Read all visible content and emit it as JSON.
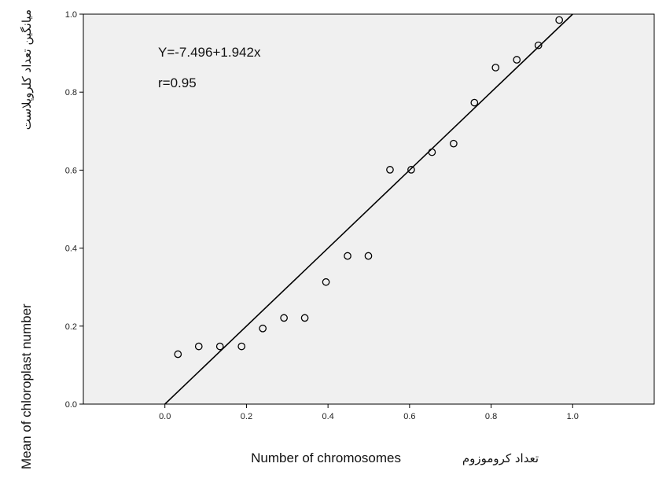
{
  "chart_data": {
    "type": "scatter",
    "annotations": [
      "Y=-7.496+1.942x",
      "r=0.95"
    ],
    "xlabel": "Number of chromosomes",
    "xlabel_alt": "تعداد کروموزوم",
    "ylabel": "Mean of chloroplast number",
    "ylabel_alt": "میانگین تعداد کلروپلاست",
    "xlim": [
      -0.2,
      1.2
    ],
    "ylim": [
      0.0,
      1.0
    ],
    "x_ticks": [
      "0.0",
      "0.2",
      "0.4",
      "0.6",
      "0.8",
      "1.0"
    ],
    "y_ticks": [
      "0.0",
      "0.2",
      "0.4",
      "0.6",
      "0.8",
      "1.0"
    ],
    "grid": false,
    "points": [
      {
        "x": 0.032,
        "y": 0.128
      },
      {
        "x": 0.083,
        "y": 0.148
      },
      {
        "x": 0.135,
        "y": 0.148
      },
      {
        "x": 0.188,
        "y": 0.148
      },
      {
        "x": 0.24,
        "y": 0.194
      },
      {
        "x": 0.292,
        "y": 0.221
      },
      {
        "x": 0.343,
        "y": 0.221
      },
      {
        "x": 0.395,
        "y": 0.313
      },
      {
        "x": 0.448,
        "y": 0.38
      },
      {
        "x": 0.499,
        "y": 0.38
      },
      {
        "x": 0.552,
        "y": 0.601
      },
      {
        "x": 0.604,
        "y": 0.601
      },
      {
        "x": 0.655,
        "y": 0.646
      },
      {
        "x": 0.708,
        "y": 0.668
      },
      {
        "x": 0.759,
        "y": 0.773
      },
      {
        "x": 0.811,
        "y": 0.863
      },
      {
        "x": 0.863,
        "y": 0.883
      },
      {
        "x": 0.916,
        "y": 0.92
      },
      {
        "x": 0.967,
        "y": 0.985
      }
    ],
    "fit_line": {
      "x": [
        0.0,
        1.0
      ],
      "y": [
        0.0,
        1.0
      ]
    },
    "colors": {
      "plot_background": "#f0f0f0",
      "frame": "#000000",
      "marker": "#000000",
      "line": "#000000"
    }
  }
}
